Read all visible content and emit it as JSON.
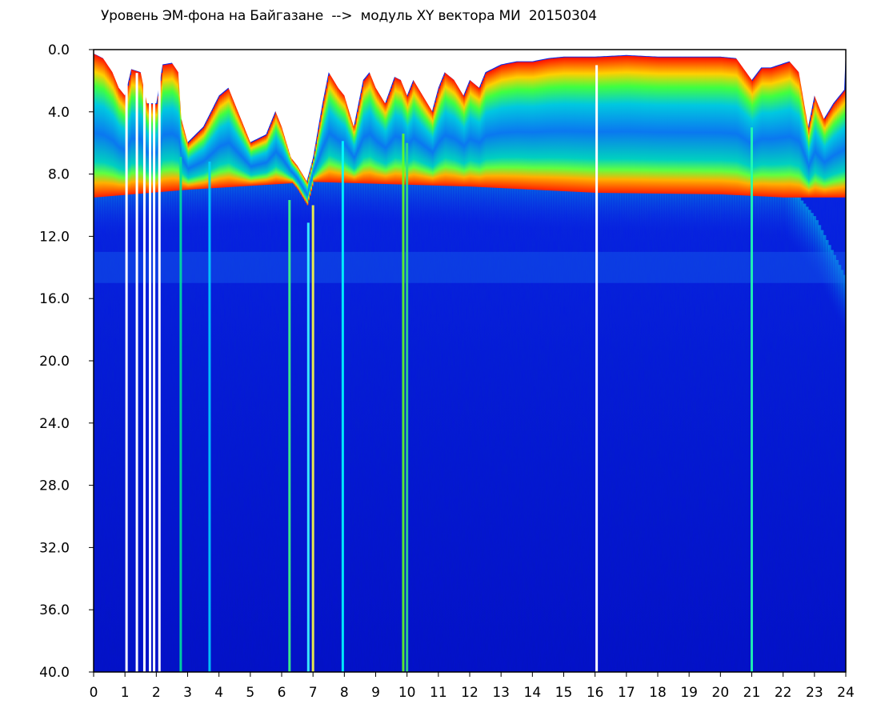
{
  "chart_data": {
    "type": "heatmap",
    "title": "Уровень ЭМ-фона на Байгазане  -->  модуль XY вектора МИ  20150304",
    "xlabel": "",
    "ylabel": "",
    "xlim": [
      0,
      24
    ],
    "ylim": [
      0,
      40
    ],
    "y_inverted": true,
    "x_ticks": [
      "0",
      "1",
      "2",
      "3",
      "4",
      "5",
      "6",
      "7",
      "8",
      "9",
      "10",
      "11",
      "12",
      "13",
      "14",
      "15",
      "16",
      "17",
      "18",
      "19",
      "20",
      "21",
      "22",
      "23",
      "24"
    ],
    "y_ticks": [
      "0.0",
      "4.0",
      "8.0",
      "12.0",
      "16.0",
      "20.0",
      "24.0",
      "28.0",
      "32.0",
      "36.0",
      "40.0"
    ],
    "colormap": [
      "#0000c8",
      "#0a3cf0",
      "#0aa0f0",
      "#00e0c0",
      "#80ff40",
      "#ffff00",
      "#ff2000"
    ],
    "background_color": "#0818c8",
    "gap_times": [
      1.05,
      1.38,
      1.62,
      1.8,
      1.93,
      2.1,
      16.05
    ],
    "bright_streaks": [
      {
        "x": 2.78,
        "color": "#00e0a0"
      },
      {
        "x": 3.7,
        "color": "#00d0ff"
      },
      {
        "x": 6.25,
        "color": "#40ff80"
      },
      {
        "x": 6.85,
        "color": "#40ffff"
      },
      {
        "x": 7.0,
        "color": "#ffff40"
      },
      {
        "x": 7.95,
        "color": "#00ffff"
      },
      {
        "x": 9.88,
        "color": "#60ff20"
      },
      {
        "x": 10.0,
        "color": "#30e080"
      },
      {
        "x": 21.0,
        "color": "#20ffb0"
      }
    ],
    "upper_band": {
      "top_level": [
        [
          0.0,
          0.3
        ],
        [
          0.3,
          0.6
        ],
        [
          0.6,
          1.5
        ],
        [
          0.8,
          2.5
        ],
        [
          1.0,
          3.0
        ],
        [
          1.2,
          1.3
        ],
        [
          1.5,
          1.5
        ],
        [
          1.7,
          3.5
        ],
        [
          2.0,
          3.5
        ],
        [
          2.2,
          1.0
        ],
        [
          2.5,
          0.9
        ],
        [
          2.7,
          1.5
        ],
        [
          2.8,
          4.5
        ],
        [
          3.0,
          6.0
        ],
        [
          3.5,
          5.0
        ],
        [
          4.0,
          3.0
        ],
        [
          4.3,
          2.5
        ],
        [
          4.7,
          4.5
        ],
        [
          5.0,
          6.0
        ],
        [
          5.5,
          5.5
        ],
        [
          5.8,
          4.0
        ],
        [
          6.0,
          5.0
        ],
        [
          6.3,
          7.0
        ],
        [
          6.5,
          7.5
        ],
        [
          6.8,
          8.5
        ],
        [
          7.0,
          7.0
        ],
        [
          7.3,
          3.5
        ],
        [
          7.5,
          1.5
        ],
        [
          7.8,
          2.5
        ],
        [
          8.0,
          3.0
        ],
        [
          8.3,
          5.0
        ],
        [
          8.6,
          2.0
        ],
        [
          8.8,
          1.5
        ],
        [
          9.0,
          2.5
        ],
        [
          9.3,
          3.5
        ],
        [
          9.6,
          1.8
        ],
        [
          9.8,
          2.0
        ],
        [
          10.0,
          3.0
        ],
        [
          10.2,
          2.0
        ],
        [
          10.5,
          3.0
        ],
        [
          10.8,
          4.0
        ],
        [
          11.0,
          2.5
        ],
        [
          11.2,
          1.5
        ],
        [
          11.5,
          2.0
        ],
        [
          11.8,
          3.0
        ],
        [
          12.0,
          2.0
        ],
        [
          12.3,
          2.5
        ],
        [
          12.5,
          1.5
        ],
        [
          12.8,
          1.2
        ],
        [
          13.0,
          1.0
        ],
        [
          13.5,
          0.8
        ],
        [
          14.0,
          0.8
        ],
        [
          14.5,
          0.6
        ],
        [
          15.0,
          0.5
        ],
        [
          16.0,
          0.5
        ],
        [
          17.0,
          0.4
        ],
        [
          18.0,
          0.5
        ],
        [
          19.0,
          0.5
        ],
        [
          20.0,
          0.5
        ],
        [
          20.5,
          0.6
        ],
        [
          21.0,
          2.0
        ],
        [
          21.3,
          1.2
        ],
        [
          21.6,
          1.2
        ],
        [
          21.9,
          1.0
        ],
        [
          22.2,
          0.8
        ],
        [
          22.5,
          1.5
        ],
        [
          22.8,
          5.0
        ],
        [
          23.0,
          3.0
        ],
        [
          23.3,
          4.5
        ],
        [
          23.6,
          3.5
        ],
        [
          24.0,
          2.5
        ]
      ],
      "red_band_center": 7.5,
      "cyan_floor": [
        [
          0,
          9.5
        ],
        [
          3,
          9.0
        ],
        [
          7,
          8.5
        ],
        [
          12,
          8.8
        ],
        [
          16,
          9.2
        ],
        [
          20,
          9.3
        ],
        [
          22,
          9.5
        ],
        [
          23,
          12.0
        ],
        [
          24,
          16.0
        ]
      ]
    },
    "secondary_band": {
      "from": 13.0,
      "to": 15.0
    }
  }
}
